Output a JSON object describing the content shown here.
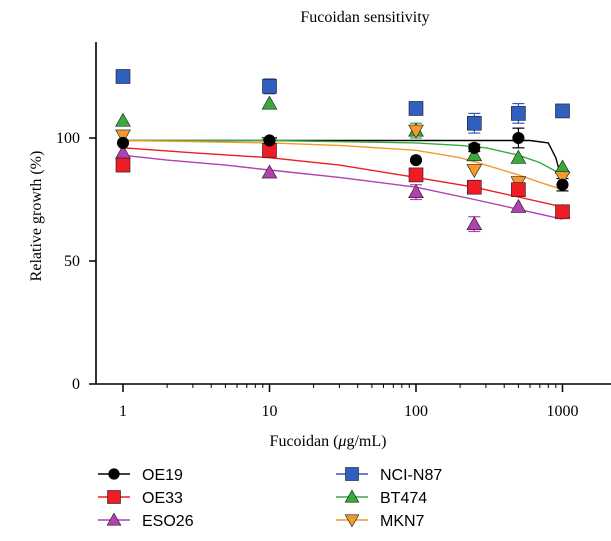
{
  "chart_data": {
    "type": "scatter",
    "title": "Fucoidan sensitivity",
    "xlabel_prefix": "Fucoidan (",
    "xlabel_mu": "μ",
    "xlabel_suffix": "g/mL)",
    "ylabel": "Relative growth (%)",
    "x_scale": "log",
    "xlim": [
      1,
      3000
    ],
    "ylim": [
      0,
      140
    ],
    "x_ticks": [
      1,
      10,
      100,
      1000
    ],
    "x_tick_labels": [
      "1",
      "10",
      "100",
      "1000"
    ],
    "y_ticks": [
      0,
      50,
      100
    ],
    "y_tick_labels": [
      "0",
      "50",
      "100"
    ],
    "grid": false,
    "legend_position": "bottom",
    "series": [
      {
        "name": "OE19",
        "color": "#000000",
        "marker": "circle",
        "x": [
          1,
          10,
          100,
          250,
          500,
          1000
        ],
        "y": [
          98,
          99,
          91,
          96,
          100,
          81
        ],
        "err": [
          0,
          0,
          0,
          1.5,
          4,
          2.5
        ],
        "fit_x": [
          1,
          3,
          10,
          30,
          100,
          200,
          400,
          600,
          800,
          900,
          1000
        ],
        "fit_y": [
          99,
          99,
          99,
          99,
          99,
          99,
          99,
          99,
          98,
          92,
          82
        ]
      },
      {
        "name": "OE33",
        "color": "#ee1c24",
        "marker": "square",
        "x": [
          1,
          10,
          100,
          250,
          500,
          1000
        ],
        "y": [
          89,
          95,
          85,
          80,
          79,
          70
        ],
        "err": [
          0,
          0,
          0,
          0,
          0,
          0
        ],
        "fit_x": [
          1,
          3,
          10,
          30,
          100,
          250,
          500,
          1000
        ],
        "fit_y": [
          96,
          94,
          92,
          89,
          84,
          80,
          76,
          72
        ]
      },
      {
        "name": "ESO26",
        "color": "#b140b1",
        "marker": "triangle-up",
        "x": [
          1,
          10,
          100,
          250,
          500,
          1000
        ],
        "y": [
          94,
          86,
          78,
          65,
          72,
          70
        ],
        "err": [
          0,
          0,
          3,
          3,
          0,
          0
        ],
        "fit_x": [
          1,
          2,
          5,
          10,
          30,
          100,
          250,
          500,
          1000
        ],
        "fit_y": [
          93,
          91,
          89,
          87,
          84,
          80,
          75,
          71,
          67
        ]
      },
      {
        "name": "NCI-N87",
        "color": "#2f5fbf",
        "marker": "square",
        "x": [
          1,
          10,
          100,
          250,
          500,
          1000
        ],
        "y": [
          125,
          121,
          112,
          106,
          110,
          111
        ],
        "err": [
          2.5,
          3,
          0,
          4,
          4,
          0
        ],
        "fit_x": [],
        "fit_y": []
      },
      {
        "name": "BT474",
        "color": "#3aa83a",
        "marker": "triangle-up",
        "x": [
          1,
          10,
          100,
          250,
          500,
          1000
        ],
        "y": [
          107,
          114,
          103,
          93,
          92,
          88
        ],
        "err": [
          0,
          0,
          3,
          0,
          0,
          0
        ],
        "fit_x": [
          1,
          10,
          100,
          200,
          300,
          500,
          700,
          1000
        ],
        "fit_y": [
          99,
          99,
          98,
          97,
          96,
          93,
          90,
          85
        ]
      },
      {
        "name": "MKN7",
        "color": "#f39a2a",
        "marker": "triangle-down",
        "x": [
          1,
          10,
          100,
          250,
          500,
          1000
        ],
        "y": [
          101,
          98,
          103,
          87,
          82,
          84
        ],
        "err": [
          0,
          0,
          0,
          0,
          0,
          0
        ],
        "fit_x": [
          1,
          10,
          30,
          100,
          200,
          300,
          500,
          700,
          1000
        ],
        "fit_y": [
          99,
          98,
          97,
          95,
          92,
          89,
          85,
          82,
          79
        ]
      }
    ]
  }
}
